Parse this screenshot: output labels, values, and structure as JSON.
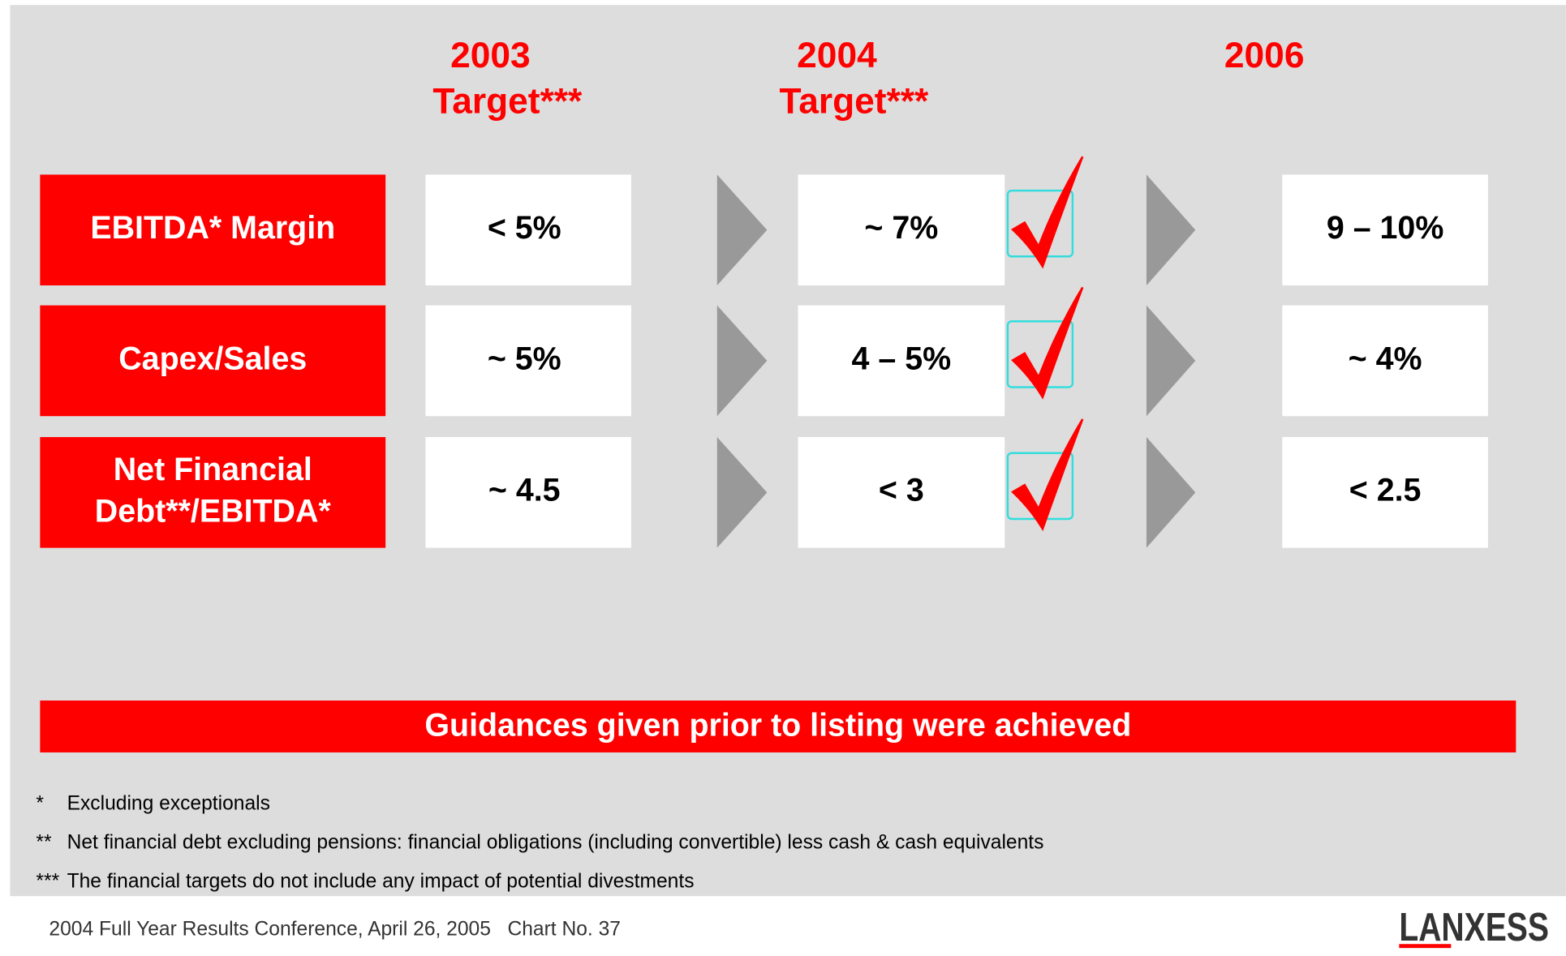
{
  "columns": [
    {
      "year": "2003",
      "label": "Target***"
    },
    {
      "year": "2004",
      "label": "Target***"
    },
    {
      "year": "2006"
    }
  ],
  "rows": [
    {
      "label": [
        "EBITDA* Margin"
      ],
      "values": [
        "< 5%",
        "~ 7%",
        "9 – 10%"
      ]
    },
    {
      "label": [
        "Capex/Sales"
      ],
      "values": [
        "~ 5%",
        "4 – 5%",
        "~ 4%"
      ]
    },
    {
      "label": [
        "Net Financial",
        "Debt**/EBITDA*"
      ],
      "values": [
        "~ 4.5",
        "< 3",
        "< 2.5"
      ]
    }
  ],
  "banner": "Guidances given prior to listing were achieved",
  "footnotes": [
    {
      "marker": "*",
      "text": "Excluding exceptionals"
    },
    {
      "marker": "**",
      "text": "Net financial debt excluding pensions: financial obligations (including convertible) less cash & cash equivalents"
    },
    {
      "marker": "***",
      "text": "The financial targets do not include any impact of potential divestments"
    }
  ],
  "footer": "2004 Full Year Results Conference, April 26, 2005   Chart No. 37",
  "logo": "LANXESS"
}
